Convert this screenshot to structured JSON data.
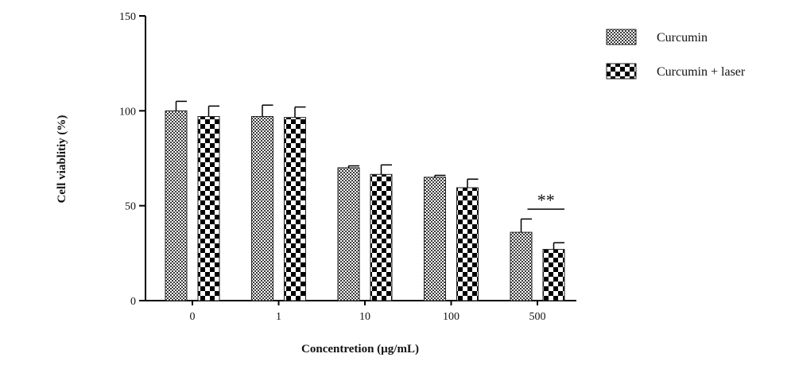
{
  "chart_data": {
    "type": "bar",
    "xlabel": "Concentretion (µg/mL)",
    "ylabel": "Cell viablitiy (%)",
    "ylim": [
      0,
      150
    ],
    "yticks": [
      0,
      50,
      100,
      150
    ],
    "categories": [
      "0",
      "1",
      "10",
      "100",
      "500"
    ],
    "series": [
      {
        "name": "Curcumin",
        "pattern": "fine-checker",
        "values": [
          100,
          97,
          70,
          65,
          36
        ],
        "errors": [
          5,
          6,
          1,
          1,
          7
        ]
      },
      {
        "name": "Curcumin + laser",
        "pattern": "coarse-checker",
        "values": [
          97,
          96.5,
          66.5,
          59.5,
          27
        ],
        "errors": [
          5.5,
          5.5,
          5,
          4.5,
          3.5
        ]
      }
    ],
    "annotations": [
      {
        "text": "**",
        "category": "500"
      }
    ],
    "legend": "top-right",
    "grid": false
  }
}
